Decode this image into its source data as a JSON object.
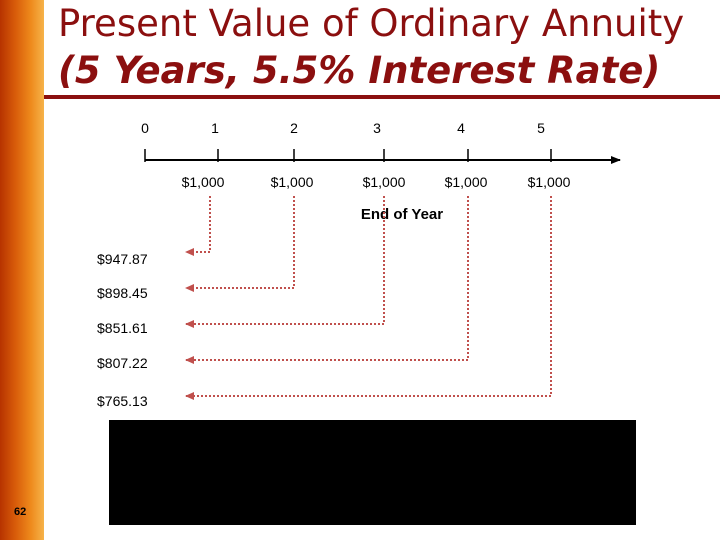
{
  "slide": {
    "title": "Present Value of Ordinary Annuity",
    "subtitle": "(5 Years, 5.5% Interest Rate)",
    "slide_number": "62"
  },
  "timeline": {
    "periods": [
      "0",
      "1",
      "2",
      "3",
      "4",
      "5"
    ],
    "payments": [
      "$1,000",
      "$1,000",
      "$1,000",
      "$1,000",
      "$1,000"
    ],
    "axis_label": "End of Year"
  },
  "present_values": [
    "$947.87",
    "$898.45",
    "$851.61",
    "$807.22",
    "$765.13"
  ],
  "colors": {
    "title": "#8b0f0f",
    "connector": "#c0504d",
    "accent_bar": "#d85c0a"
  }
}
